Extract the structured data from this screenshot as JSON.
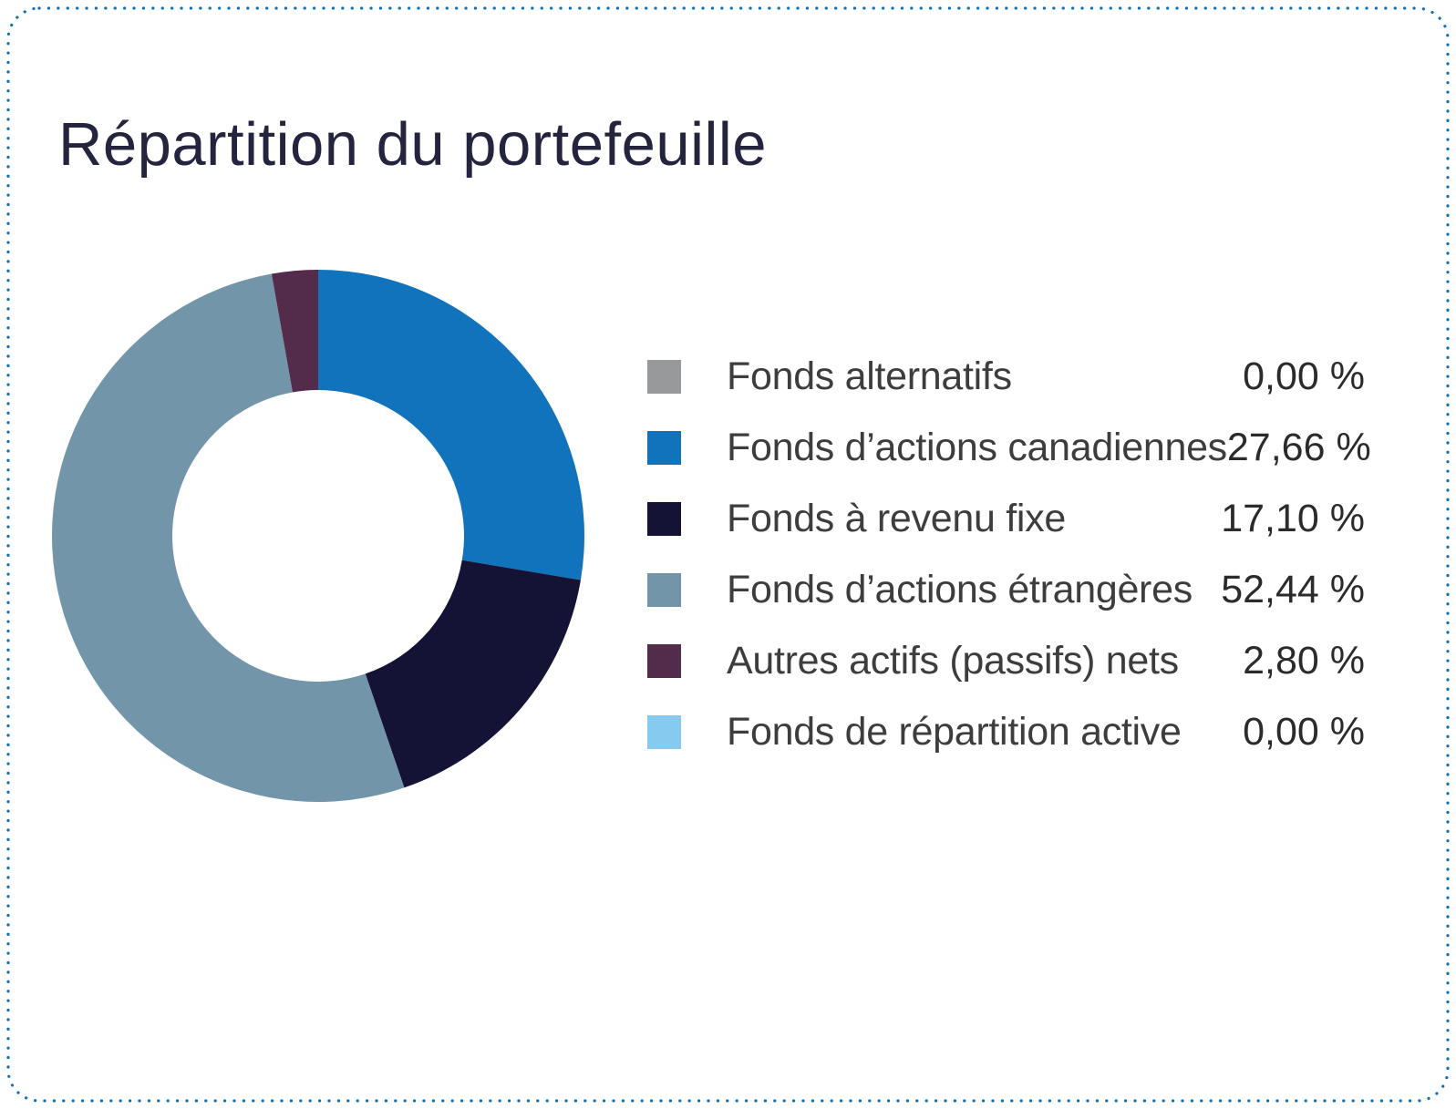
{
  "page": {
    "background": "#ffffff",
    "border_color": "#0f70b7"
  },
  "header": {
    "title": "Répartition du portefeuille",
    "title_color": "#24243f"
  },
  "chart_data": {
    "type": "pie",
    "subtype": "donut",
    "title": "Répartition du portefeuille",
    "legend_position": "right",
    "start_angle_deg": -90,
    "direction": "clockwise",
    "inner_radius_ratio": 0.548,
    "categories": [
      "Fonds alternatifs",
      "Fonds d’actions canadiennes",
      "Fonds à revenu fixe",
      "Fonds d’actions étrangères",
      "Autres actifs (passifs) nets",
      "Fonds de répartition active"
    ],
    "values": [
      0.0,
      27.66,
      17.1,
      52.44,
      2.8,
      0.0
    ],
    "value_labels": [
      "0,00 %",
      "27,66 %",
      "17,10 %",
      "52,44 %",
      "2,80 %",
      "0,00 %"
    ],
    "colors": [
      "#97999B",
      "#1073BB",
      "#141335",
      "#7295AA",
      "#532C4C",
      "#87CAF0"
    ]
  },
  "legend": {
    "items": [
      {
        "label": "Fonds alternatifs",
        "value": "0,00 %",
        "color": "#97999B"
      },
      {
        "label": "Fonds d’actions canadiennes",
        "value": "27,66 %",
        "color": "#1073BB"
      },
      {
        "label": "Fonds à revenu fixe",
        "value": "17,10 %",
        "color": "#141335"
      },
      {
        "label": "Fonds d’actions étrangères",
        "value": "52,44 %",
        "color": "#7295AA"
      },
      {
        "label": "Autres actifs (passifs) nets",
        "value": "2,80 %",
        "color": "#532C4C"
      },
      {
        "label": "Fonds de répartition active",
        "value": "0,00 %",
        "color": "#87CAF0"
      }
    ]
  }
}
